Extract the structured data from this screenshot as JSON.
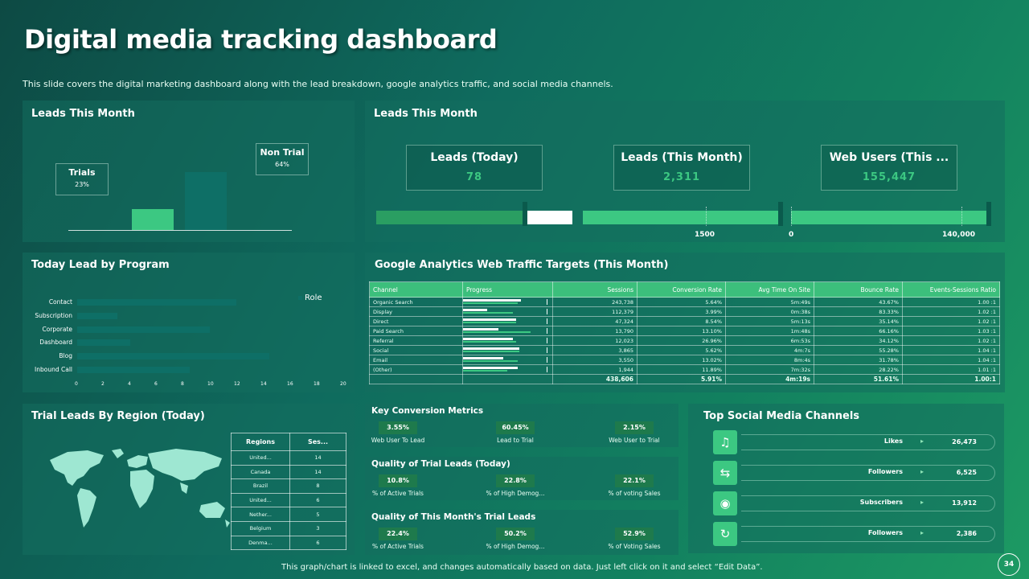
{
  "header": {
    "title": "Digital media tracking dashboard",
    "subtitle": "This slide covers the digital marketing dashboard along with the lead breakdown, google analytics traffic, and social media channels."
  },
  "leads_chart": {
    "title": "Leads This Month",
    "chart_data": {
      "type": "bar",
      "categories": [
        "Trials",
        "Non Trial"
      ],
      "values": [
        23,
        64
      ],
      "data_labels": [
        "23%",
        "64%"
      ],
      "colors": [
        "#3cc882",
        "#0e6f66"
      ]
    }
  },
  "leads_kpi": {
    "title": "Leads This Month",
    "cards": [
      {
        "label": "Leads (Today)",
        "value": "78"
      },
      {
        "label": "Leads (This Month)",
        "value": "2,311"
      },
      {
        "label": "Web Users (This ...",
        "value": "155,447"
      }
    ],
    "gauge_labels": [
      "1500",
      "0",
      "140,000"
    ]
  },
  "program_chart": {
    "title": "Today Lead by Program",
    "chart_data": {
      "type": "bar",
      "orientation": "horizontal",
      "categories": [
        "Contact",
        "Subscription",
        "Corporate",
        "Dashboard",
        "Blog",
        "Inbound Call"
      ],
      "series": [
        {
          "name": "Role",
          "values": [
            12,
            3,
            10,
            4,
            14.5,
            8.5
          ]
        }
      ],
      "xlim": [
        0,
        20
      ],
      "xticks": [
        "0",
        "2",
        "4",
        "6",
        "8",
        "10",
        "12",
        "14",
        "16",
        "18",
        "20"
      ],
      "legend": "top-right"
    }
  },
  "ga": {
    "title": "Google Analytics Web Traffic Targets (This Month)",
    "columns": [
      "Channel",
      "Progress",
      "Sessions",
      "Conversion Rate",
      "Avg Time On Site",
      "Bounce Rate",
      "Events-Sessions Ratio"
    ],
    "rows": [
      {
        "channel": "Organic Search",
        "sessions": "243,738",
        "conv": "5.64%",
        "time": "5m:49s",
        "bounce": "43.67%",
        "ratio": "1.00 :1",
        "p1": 0.72,
        "p2": 0.68
      },
      {
        "channel": "Display",
        "sessions": "112,379",
        "conv": "3.99%",
        "time": "0m:38s",
        "bounce": "83.33%",
        "ratio": "1.02 :1",
        "p1": 0.3,
        "p2": 0.62
      },
      {
        "channel": "Direct",
        "sessions": "47,324",
        "conv": "8.54%",
        "time": "5m:13s",
        "bounce": "35.14%",
        "ratio": "1.02 :1",
        "p1": 0.66,
        "p2": 0.66
      },
      {
        "channel": "Paid Search",
        "sessions": "13,790",
        "conv": "13.10%",
        "time": "1m:48s",
        "bounce": "66.16%",
        "ratio": "1.03 :1",
        "p1": 0.44,
        "p2": 0.84
      },
      {
        "channel": "Referral",
        "sessions": "12,023",
        "conv": "26.96%",
        "time": "6m:53s",
        "bounce": "34.12%",
        "ratio": "1.02 :1",
        "p1": 0.62,
        "p2": 0.66
      },
      {
        "channel": "Social",
        "sessions": "3,865",
        "conv": "5.62%",
        "time": "4m:7s",
        "bounce": "55.28%",
        "ratio": "1.04 :1",
        "p1": 0.7,
        "p2": 0.7
      },
      {
        "channel": "Email",
        "sessions": "3,550",
        "conv": "13.02%",
        "time": "8m:4s",
        "bounce": "31.78%",
        "ratio": "1.04 :1",
        "p1": 0.5,
        "p2": 0.68
      },
      {
        "channel": "(Other)",
        "sessions": "1,944",
        "conv": "11.89%",
        "time": "7m:32s",
        "bounce": "28.22%",
        "ratio": "1.01 :1",
        "p1": 0.68,
        "p2": 0.55
      }
    ],
    "total": {
      "sessions": "438,606",
      "conv": "5.91%",
      "time": "4m:19s",
      "bounce": "51.61%",
      "ratio": "1.00:1"
    }
  },
  "region": {
    "title": "Trial Leads By Region (Today)",
    "columns": [
      "Regions",
      "Ses..."
    ],
    "rows": [
      {
        "region": "United...",
        "sessions": "14"
      },
      {
        "region": "Canada",
        "sessions": "14"
      },
      {
        "region": "Brazil",
        "sessions": "8"
      },
      {
        "region": "United...",
        "sessions": "6"
      },
      {
        "region": "Nether...",
        "sessions": "5"
      },
      {
        "region": "Belgium",
        "sessions": "3"
      },
      {
        "region": "Denma...",
        "sessions": "6"
      }
    ]
  },
  "conversion": {
    "groups": [
      {
        "title": "Key Conversion Metrics",
        "metrics": [
          {
            "value": "3.55%",
            "label": "Web User To Lead"
          },
          {
            "value": "60.45%",
            "label": "Lead to Trial"
          },
          {
            "value": "2.15%",
            "label": "Web User to Trial"
          }
        ]
      },
      {
        "title": "Quality of Trial Leads (Today)",
        "metrics": [
          {
            "value": "10.8%",
            "label": "% of Active Trials"
          },
          {
            "value": "22.8%",
            "label": "% of High Demog..."
          },
          {
            "value": "22.1%",
            "label": "% of voting Sales"
          }
        ]
      },
      {
        "title": "Quality of This Month's Trial Leads",
        "metrics": [
          {
            "value": "22.4%",
            "label": "% of Active Trials"
          },
          {
            "value": "50.2%",
            "label": "% of High Demog..."
          },
          {
            "value": "52.9%",
            "label": "% of Voting Sales"
          }
        ]
      }
    ]
  },
  "social": {
    "title": "Top Social Media Channels",
    "items": [
      {
        "icon": "music-icon",
        "name": "Likes",
        "value": "26,473"
      },
      {
        "icon": "share-icon",
        "name": "Followers",
        "value": "6,525"
      },
      {
        "icon": "broadcast-icon",
        "name": "Subscribers",
        "value": "13,912"
      },
      {
        "icon": "refresh-icon",
        "name": "Followers",
        "value": "2,386"
      }
    ]
  },
  "footer": {
    "note": "This graph/chart is linked to excel, and changes automatically based on data. Just left click on it and select “Edit Data”.",
    "page": "34"
  }
}
